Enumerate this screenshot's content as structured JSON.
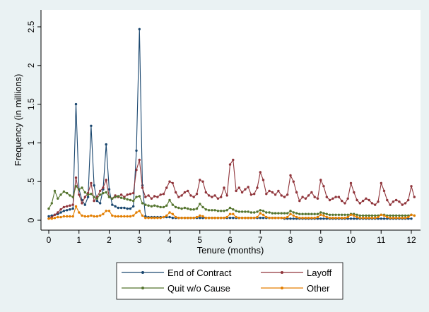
{
  "chart_data": {
    "type": "line",
    "title": "",
    "xlabel": "Tenure (months)",
    "ylabel": "Frequency (in millions)",
    "xlim": [
      -0.2,
      12.2
    ],
    "ylim": [
      -0.05,
      2.55
    ],
    "x_ticks": [
      0,
      1,
      2,
      3,
      4,
      5,
      6,
      7,
      8,
      9,
      10,
      11,
      12
    ],
    "x_tick_labels": [
      "0",
      "1",
      "2",
      "3",
      "4",
      "5",
      "6",
      "7",
      "8",
      "9",
      "10",
      "11",
      "12"
    ],
    "y_ticks": [
      0,
      0.5,
      1,
      1.5,
      2,
      2.5
    ],
    "y_tick_labels": [
      "0",
      ".5",
      "1",
      "1.5",
      "2",
      "2.5"
    ],
    "grid": false,
    "legend_position": "bottom",
    "x_step": 0.1,
    "series": [
      {
        "name": "End of Contract",
        "color": "#1a476f",
        "values": [
          0.05,
          0.06,
          0.07,
          0.08,
          0.1,
          0.12,
          0.13,
          0.14,
          0.15,
          1.5,
          0.4,
          0.26,
          0.2,
          0.3,
          1.22,
          0.45,
          0.25,
          0.22,
          0.4,
          0.98,
          0.4,
          0.2,
          0.18,
          0.16,
          0.16,
          0.16,
          0.15,
          0.15,
          0.18,
          0.9,
          2.47,
          0.45,
          0.05,
          0.04,
          0.04,
          0.04,
          0.04,
          0.04,
          0.04,
          0.04,
          0.04,
          0.03,
          0.03,
          0.03,
          0.03,
          0.03,
          0.03,
          0.03,
          0.03,
          0.03,
          0.03,
          0.03,
          0.03,
          0.03,
          0.03,
          0.03,
          0.03,
          0.03,
          0.03,
          0.03,
          0.03,
          0.03,
          0.03,
          0.03,
          0.03,
          0.03,
          0.03,
          0.03,
          0.03,
          0.03,
          0.03,
          0.03,
          0.03,
          0.03,
          0.03,
          0.03,
          0.03,
          0.03,
          0.02,
          0.02,
          0.02,
          0.02,
          0.02,
          0.02,
          0.02,
          0.02,
          0.02,
          0.02,
          0.02,
          0.02,
          0.02,
          0.02,
          0.02,
          0.02,
          0.02,
          0.02,
          0.02,
          0.02,
          0.02,
          0.02,
          0.02,
          0.02,
          0.02,
          0.02,
          0.02,
          0.02,
          0.02,
          0.02,
          0.02,
          0.02,
          0.02,
          0.02,
          0.02,
          0.02,
          0.02,
          0.02,
          0.02,
          0.02,
          0.02,
          0.02,
          0.02
        ]
      },
      {
        "name": "Layoff",
        "color": "#90353b",
        "values": [
          0.02,
          0.04,
          0.07,
          0.1,
          0.14,
          0.17,
          0.18,
          0.19,
          0.2,
          0.55,
          0.33,
          0.22,
          0.3,
          0.35,
          0.48,
          0.25,
          0.3,
          0.38,
          0.42,
          0.52,
          0.3,
          0.28,
          0.32,
          0.3,
          0.33,
          0.3,
          0.33,
          0.34,
          0.35,
          0.65,
          0.78,
          0.42,
          0.3,
          0.32,
          0.28,
          0.31,
          0.3,
          0.33,
          0.34,
          0.42,
          0.5,
          0.48,
          0.36,
          0.3,
          0.32,
          0.36,
          0.38,
          0.32,
          0.3,
          0.34,
          0.52,
          0.5,
          0.36,
          0.32,
          0.3,
          0.32,
          0.28,
          0.3,
          0.42,
          0.32,
          0.72,
          0.78,
          0.38,
          0.42,
          0.36,
          0.4,
          0.43,
          0.33,
          0.34,
          0.42,
          0.62,
          0.52,
          0.34,
          0.38,
          0.36,
          0.33,
          0.38,
          0.32,
          0.3,
          0.33,
          0.58,
          0.5,
          0.36,
          0.25,
          0.3,
          0.28,
          0.32,
          0.36,
          0.3,
          0.28,
          0.52,
          0.44,
          0.3,
          0.26,
          0.28,
          0.3,
          0.3,
          0.25,
          0.22,
          0.28,
          0.48,
          0.36,
          0.26,
          0.22,
          0.25,
          0.28,
          0.26,
          0.22,
          0.2,
          0.24,
          0.48,
          0.38,
          0.26,
          0.2,
          0.24,
          0.26,
          0.24,
          0.2,
          0.22,
          0.26,
          0.44,
          0.3
        ]
      },
      {
        "name": "Quit w/o Cause",
        "color": "#55752f",
        "values": [
          0.15,
          0.22,
          0.38,
          0.28,
          0.33,
          0.37,
          0.35,
          0.32,
          0.3,
          0.44,
          0.4,
          0.42,
          0.36,
          0.33,
          0.34,
          0.3,
          0.28,
          0.33,
          0.35,
          0.36,
          0.3,
          0.28,
          0.3,
          0.31,
          0.29,
          0.28,
          0.27,
          0.26,
          0.25,
          0.3,
          0.31,
          0.22,
          0.2,
          0.19,
          0.18,
          0.19,
          0.18,
          0.17,
          0.17,
          0.19,
          0.26,
          0.2,
          0.17,
          0.16,
          0.15,
          0.16,
          0.15,
          0.14,
          0.14,
          0.15,
          0.21,
          0.17,
          0.14,
          0.13,
          0.13,
          0.13,
          0.12,
          0.12,
          0.12,
          0.13,
          0.16,
          0.14,
          0.12,
          0.11,
          0.11,
          0.11,
          0.11,
          0.1,
          0.1,
          0.11,
          0.13,
          0.12,
          0.1,
          0.1,
          0.09,
          0.09,
          0.09,
          0.09,
          0.09,
          0.09,
          0.12,
          0.1,
          0.09,
          0.08,
          0.08,
          0.08,
          0.08,
          0.08,
          0.08,
          0.08,
          0.1,
          0.09,
          0.08,
          0.07,
          0.07,
          0.07,
          0.07,
          0.07,
          0.07,
          0.07,
          0.08,
          0.08,
          0.07,
          0.06,
          0.06,
          0.06,
          0.06,
          0.06,
          0.06,
          0.06,
          0.07,
          0.07,
          0.06,
          0.06,
          0.06,
          0.06,
          0.06,
          0.06,
          0.06,
          0.06,
          0.07,
          0.06
        ]
      },
      {
        "name": "Other",
        "color": "#e37e00",
        "values": [
          0.02,
          0.02,
          0.03,
          0.04,
          0.04,
          0.05,
          0.05,
          0.05,
          0.05,
          0.18,
          0.1,
          0.06,
          0.05,
          0.05,
          0.06,
          0.05,
          0.05,
          0.06,
          0.08,
          0.12,
          0.12,
          0.06,
          0.05,
          0.05,
          0.05,
          0.05,
          0.05,
          0.05,
          0.06,
          0.1,
          0.12,
          0.06,
          0.03,
          0.03,
          0.03,
          0.03,
          0.03,
          0.03,
          0.04,
          0.06,
          0.1,
          0.08,
          0.04,
          0.03,
          0.03,
          0.03,
          0.03,
          0.03,
          0.03,
          0.04,
          0.06,
          0.05,
          0.03,
          0.03,
          0.03,
          0.03,
          0.03,
          0.03,
          0.03,
          0.04,
          0.08,
          0.08,
          0.04,
          0.03,
          0.03,
          0.03,
          0.03,
          0.03,
          0.03,
          0.04,
          0.09,
          0.07,
          0.04,
          0.03,
          0.03,
          0.03,
          0.03,
          0.03,
          0.03,
          0.04,
          0.08,
          0.06,
          0.04,
          0.03,
          0.03,
          0.03,
          0.03,
          0.03,
          0.03,
          0.04,
          0.07,
          0.06,
          0.04,
          0.03,
          0.03,
          0.03,
          0.03,
          0.03,
          0.03,
          0.04,
          0.07,
          0.06,
          0.04,
          0.03,
          0.03,
          0.03,
          0.03,
          0.03,
          0.03,
          0.04,
          0.07,
          0.06,
          0.04,
          0.03,
          0.03,
          0.03,
          0.03,
          0.03,
          0.03,
          0.04,
          0.07,
          0.06
        ]
      }
    ]
  }
}
